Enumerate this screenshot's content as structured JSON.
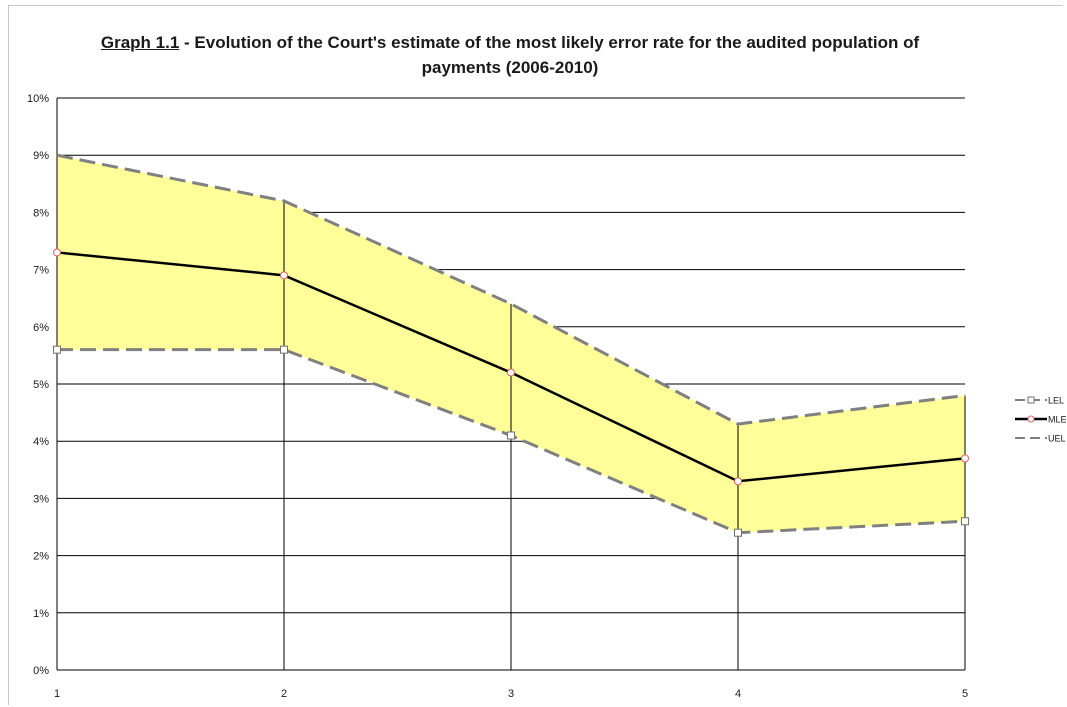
{
  "chart_data": {
    "type": "line",
    "title_prefix": "Graph 1.1",
    "title_rest": " - Evolution of the Court's estimate of the most likely error rate for the audited population of payments (2006-2010)",
    "categories": [
      "1",
      "2",
      "3",
      "4",
      "5"
    ],
    "ylim": [
      0,
      10
    ],
    "yticks": [
      "0%",
      "1%",
      "2%",
      "3%",
      "4%",
      "5%",
      "6%",
      "7%",
      "8%",
      "9%",
      "10%"
    ],
    "grid": true,
    "legend_position": "right",
    "band_color": "#ffff99",
    "series": [
      {
        "name": "LEL",
        "values": [
          5.6,
          5.6,
          4.1,
          2.4,
          2.6
        ],
        "color": "#808080",
        "style": "dashed",
        "marker": "square"
      },
      {
        "name": "MLE",
        "values": [
          7.3,
          6.9,
          5.2,
          3.3,
          3.7
        ],
        "color": "#000000",
        "style": "solid",
        "marker": "circle"
      },
      {
        "name": "UEL",
        "values": [
          9.0,
          8.2,
          6.4,
          4.3,
          4.8
        ],
        "color": "#808080",
        "style": "dashed",
        "marker": "none"
      }
    ]
  }
}
